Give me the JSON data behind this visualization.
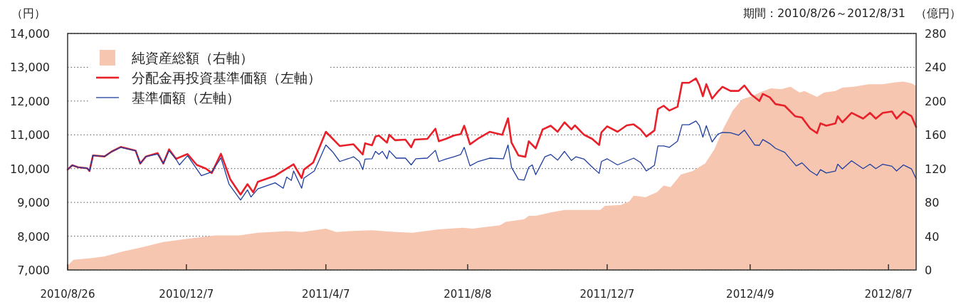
{
  "chart_data": {
    "type": "line",
    "ylabel": "（円）",
    "y2label": "（億円）",
    "annotations": [
      "期間：2010/8/26～2012/8/31"
    ],
    "xlim": [
      "2010-08-26",
      "2012-08-31"
    ],
    "xticks": [
      {
        "value": "2010-08-26",
        "label": "2010/8/26"
      },
      {
        "value": "2010-12-07",
        "label": "2010/12/7"
      },
      {
        "value": "2011-04-07",
        "label": "2011/4/7"
      },
      {
        "value": "2011-08-08",
        "label": "2011/8/8"
      },
      {
        "value": "2011-12-07",
        "label": "2011/12/7"
      },
      {
        "value": "2012-04-09",
        "label": "2012/4/9"
      },
      {
        "value": "2012-08-07",
        "label": "2012/8/7"
      }
    ],
    "ylim": [
      7000,
      14000
    ],
    "yticks": [
      {
        "value": 7000,
        "label": "7,000"
      },
      {
        "value": 8000,
        "label": "8,000"
      },
      {
        "value": 9000,
        "label": "9,000"
      },
      {
        "value": 10000,
        "label": "10,000"
      },
      {
        "value": 11000,
        "label": "11,000"
      },
      {
        "value": 12000,
        "label": "12,000"
      },
      {
        "value": 13000,
        "label": "13,000"
      },
      {
        "value": 14000,
        "label": "14,000"
      }
    ],
    "y2lim": [
      0,
      280
    ],
    "y2ticks": [
      0,
      40,
      80,
      120,
      160,
      200,
      240,
      280
    ],
    "grid": "y",
    "legend": "top left",
    "series": [
      {
        "name": "純資産総額（右軸）",
        "type": "area",
        "axis": "y2",
        "color": "#f7c6b0",
        "x": [
          "2010-08-26",
          "2010-08-31",
          "2010-09-15",
          "2010-09-27",
          "2010-10-13",
          "2010-10-30",
          "2010-11-17",
          "2010-12-08",
          "2011-01-01",
          "2011-01-22",
          "2011-02-07",
          "2011-03-04",
          "2011-03-17",
          "2011-04-07",
          "2011-04-16",
          "2011-04-27",
          "2011-05-17",
          "2011-06-07",
          "2011-06-21",
          "2011-07-14",
          "2011-08-04",
          "2011-08-12",
          "2011-09-05",
          "2011-09-10",
          "2011-09-26",
          "2011-09-30",
          "2011-10-06",
          "2011-10-19",
          "2011-10-31",
          "2011-11-18",
          "2011-12-01",
          "2011-12-05",
          "2011-12-19",
          "2011-12-26",
          "2011-12-30",
          "2012-01-05",
          "2012-01-09",
          "2012-01-19",
          "2012-01-25",
          "2012-01-31",
          "2012-02-09",
          "2012-02-19",
          "2012-03-01",
          "2012-03-09",
          "2012-03-17",
          "2012-03-25",
          "2012-04-02",
          "2012-04-11",
          "2012-04-19",
          "2012-04-27",
          "2012-05-06",
          "2012-05-14",
          "2012-05-22",
          "2012-05-26",
          "2012-06-06",
          "2012-06-12",
          "2012-06-22",
          "2012-06-28",
          "2012-07-08",
          "2012-07-21",
          "2012-08-02",
          "2012-08-12",
          "2012-08-20",
          "2012-08-27",
          "2012-08-31"
        ],
        "values": [
          5,
          12,
          14,
          16,
          22,
          27,
          33,
          37,
          41,
          41,
          44,
          46,
          45,
          49,
          45,
          46,
          47,
          45,
          44,
          48,
          50,
          49,
          53,
          57,
          60,
          64,
          64,
          68,
          71,
          71,
          71,
          76,
          77,
          81,
          88,
          87,
          86,
          92,
          100,
          98,
          113,
          117,
          126,
          143,
          168,
          189,
          202,
          206,
          211,
          215,
          214,
          217,
          210,
          212,
          205,
          210,
          212,
          216,
          217,
          220,
          220,
          222,
          223,
          221,
          218
        ]
      },
      {
        "name": "分配金再投資基準価額（左軸）",
        "color": "#e8202a",
        "x": [
          "2010-08-26",
          "2010-08-30",
          "2010-09-04",
          "2010-09-12",
          "2010-09-14",
          "2010-09-17",
          "2010-09-27",
          "2010-10-03",
          "2010-10-11",
          "2010-10-24",
          "2010-10-28",
          "2010-11-02",
          "2010-11-12",
          "2010-11-17",
          "2010-11-22",
          "2010-11-28",
          "2010-12-08",
          "2010-12-16",
          "2010-12-24",
          "2010-12-29",
          "2011-01-06",
          "2011-01-14",
          "2011-01-23",
          "2011-01-29",
          "2011-02-03",
          "2011-02-07",
          "2011-02-22",
          "2011-03-04",
          "2011-03-10",
          "2011-03-17",
          "2011-03-19",
          "2011-03-27",
          "2011-04-07",
          "2011-04-19",
          "2011-05-01",
          "2011-05-09",
          "2011-05-11",
          "2011-05-17",
          "2011-05-20",
          "2011-05-23",
          "2011-05-30",
          "2011-06-01",
          "2011-06-06",
          "2011-06-15",
          "2011-06-20",
          "2011-06-23",
          "2011-07-04",
          "2011-07-11",
          "2011-07-14",
          "2011-07-20",
          "2011-07-27",
          "2011-08-02",
          "2011-08-05",
          "2011-08-10",
          "2011-08-18",
          "2011-08-27",
          "2011-09-07",
          "2011-09-12",
          "2011-09-15",
          "2011-09-21",
          "2011-09-27",
          "2011-09-30",
          "2011-10-06",
          "2011-10-12",
          "2011-10-19",
          "2011-10-25",
          "2011-10-31",
          "2011-11-06",
          "2011-11-09",
          "2011-11-17",
          "2011-11-24",
          "2011-11-30",
          "2011-12-02",
          "2011-12-07",
          "2011-12-16",
          "2011-12-24",
          "2011-12-30",
          "2012-01-05",
          "2012-01-10",
          "2012-01-17",
          "2012-01-20",
          "2012-01-25",
          "2012-01-30",
          "2012-02-06",
          "2012-02-10",
          "2012-02-16",
          "2012-02-22",
          "2012-02-25",
          "2012-02-28",
          "2012-03-02",
          "2012-03-07",
          "2012-03-12",
          "2012-03-16",
          "2012-03-23",
          "2012-03-30",
          "2012-04-04",
          "2012-04-10",
          "2012-04-17",
          "2012-04-20",
          "2012-04-26",
          "2012-05-01",
          "2012-05-09",
          "2012-05-18",
          "2012-05-24",
          "2012-05-31",
          "2012-06-06",
          "2012-06-09",
          "2012-06-14",
          "2012-06-22",
          "2012-06-24",
          "2012-06-28",
          "2012-07-06",
          "2012-07-16",
          "2012-07-22",
          "2012-07-27",
          "2012-08-02",
          "2012-08-10",
          "2012-08-14",
          "2012-08-20",
          "2012-08-27",
          "2012-08-31"
        ],
        "values": [
          9970,
          10100,
          10040,
          10010,
          9930,
          10390,
          10360,
          10500,
          10640,
          10530,
          10150,
          10360,
          10460,
          10150,
          10570,
          10290,
          10430,
          10110,
          10000,
          9870,
          10440,
          9690,
          9230,
          9540,
          9300,
          9610,
          9790,
          10000,
          10130,
          9720,
          9970,
          10180,
          11090,
          10670,
          10720,
          10420,
          10750,
          10690,
          10950,
          10980,
          10770,
          11000,
          10840,
          10860,
          10630,
          10860,
          10880,
          11180,
          10810,
          10880,
          10980,
          11020,
          11270,
          10720,
          10910,
          11090,
          11000,
          11490,
          10770,
          10390,
          10350,
          10810,
          10600,
          11160,
          11270,
          11090,
          11370,
          11160,
          11280,
          11000,
          10880,
          10700,
          11070,
          11250,
          11090,
          11280,
          11310,
          11160,
          10950,
          11130,
          11760,
          11860,
          11720,
          11830,
          12540,
          12540,
          12670,
          12460,
          12140,
          12500,
          12070,
          12280,
          12420,
          12300,
          12300,
          12460,
          12190,
          12000,
          12210,
          12110,
          11910,
          11860,
          11550,
          11510,
          11190,
          11050,
          11340,
          11270,
          11340,
          11550,
          11370,
          11650,
          11480,
          11650,
          11480,
          11650,
          11690,
          11480,
          11690,
          11550,
          11230
        ]
      },
      {
        "name": "基準価額（左軸）",
        "color": "#1f3f9f",
        "x": [
          "2010-08-26",
          "2010-08-30",
          "2010-09-04",
          "2010-09-12",
          "2010-09-14",
          "2010-09-17",
          "2010-09-27",
          "2010-10-03",
          "2010-10-11",
          "2010-10-24",
          "2010-10-28",
          "2010-11-02",
          "2010-11-12",
          "2010-11-15",
          "2010-11-17",
          "2010-11-22",
          "2010-11-28",
          "2010-12-01",
          "2010-12-08",
          "2010-12-15",
          "2010-12-20",
          "2010-12-29",
          "2011-01-06",
          "2011-01-13",
          "2011-01-23",
          "2011-01-29",
          "2011-02-01",
          "2011-02-07",
          "2011-02-22",
          "2011-03-01",
          "2011-03-04",
          "2011-03-08",
          "2011-03-10",
          "2011-03-17",
          "2011-03-19",
          "2011-03-28",
          "2011-04-07",
          "2011-04-13",
          "2011-04-19",
          "2011-04-27",
          "2011-05-01",
          "2011-05-06",
          "2011-05-09",
          "2011-05-11",
          "2011-05-17",
          "2011-05-20",
          "2011-05-23",
          "2011-05-26",
          "2011-05-30",
          "2011-06-01",
          "2011-06-07",
          "2011-06-15",
          "2011-06-20",
          "2011-06-24",
          "2011-07-04",
          "2011-07-11",
          "2011-07-14",
          "2011-07-20",
          "2011-07-27",
          "2011-08-02",
          "2011-08-05",
          "2011-08-10",
          "2011-08-17",
          "2011-08-27",
          "2011-09-08",
          "2011-09-12",
          "2011-09-15",
          "2011-09-21",
          "2011-09-26",
          "2011-09-30",
          "2011-10-03",
          "2011-10-06",
          "2011-10-14",
          "2011-10-19",
          "2011-10-25",
          "2011-10-31",
          "2011-11-06",
          "2011-11-10",
          "2011-11-17",
          "2011-11-23",
          "2011-11-30",
          "2011-12-02",
          "2011-12-07",
          "2011-12-16",
          "2011-12-30",
          "2012-01-05",
          "2012-01-10",
          "2012-01-17",
          "2012-01-20",
          "2012-01-25",
          "2012-01-30",
          "2012-02-06",
          "2012-02-10",
          "2012-02-16",
          "2012-02-22",
          "2012-02-25",
          "2012-02-28",
          "2012-03-02",
          "2012-03-07",
          "2012-03-12",
          "2012-03-16",
          "2012-03-23",
          "2012-03-30",
          "2012-04-04",
          "2012-04-10",
          "2012-04-13",
          "2012-04-17",
          "2012-04-20",
          "2012-04-26",
          "2012-05-01",
          "2012-05-09",
          "2012-05-19",
          "2012-05-24",
          "2012-05-31",
          "2012-06-06",
          "2012-06-09",
          "2012-06-14",
          "2012-06-22",
          "2012-06-24",
          "2012-06-28",
          "2012-07-06",
          "2012-07-16",
          "2012-07-22",
          "2012-07-27",
          "2012-08-02",
          "2012-08-10",
          "2012-08-14",
          "2012-08-20",
          "2012-08-27",
          "2012-08-31"
        ],
        "values": [
          9970,
          10100,
          10040,
          10010,
          9930,
          10390,
          10360,
          10500,
          10630,
          10530,
          10150,
          10360,
          10430,
          10280,
          10150,
          10530,
          10280,
          10110,
          10380,
          10040,
          9790,
          9900,
          10320,
          9540,
          9070,
          9370,
          9160,
          9400,
          9580,
          9420,
          9750,
          9650,
          9930,
          9420,
          9720,
          9930,
          10700,
          10490,
          10210,
          10300,
          10350,
          10210,
          9970,
          10280,
          10290,
          10510,
          10420,
          10510,
          10290,
          10530,
          10310,
          10310,
          10110,
          10290,
          10310,
          10540,
          10210,
          10280,
          10350,
          10420,
          10630,
          10080,
          10210,
          10310,
          10290,
          10700,
          10040,
          9680,
          9660,
          10040,
          10110,
          9820,
          10350,
          10420,
          10250,
          10510,
          10240,
          10350,
          10280,
          10080,
          9860,
          10210,
          10290,
          10110,
          10310,
          10180,
          9930,
          10100,
          10670,
          10670,
          10630,
          10810,
          11300,
          11300,
          11410,
          11270,
          10930,
          11270,
          10790,
          11020,
          11070,
          11060,
          10990,
          11140,
          10850,
          10700,
          10690,
          10860,
          10740,
          10600,
          10480,
          10080,
          10170,
          9930,
          9800,
          9970,
          9870,
          9930,
          10130,
          9990,
          10230,
          10000,
          10130,
          10000,
          10130,
          10070,
          9930,
          10110,
          9990,
          9700
        ]
      }
    ]
  }
}
